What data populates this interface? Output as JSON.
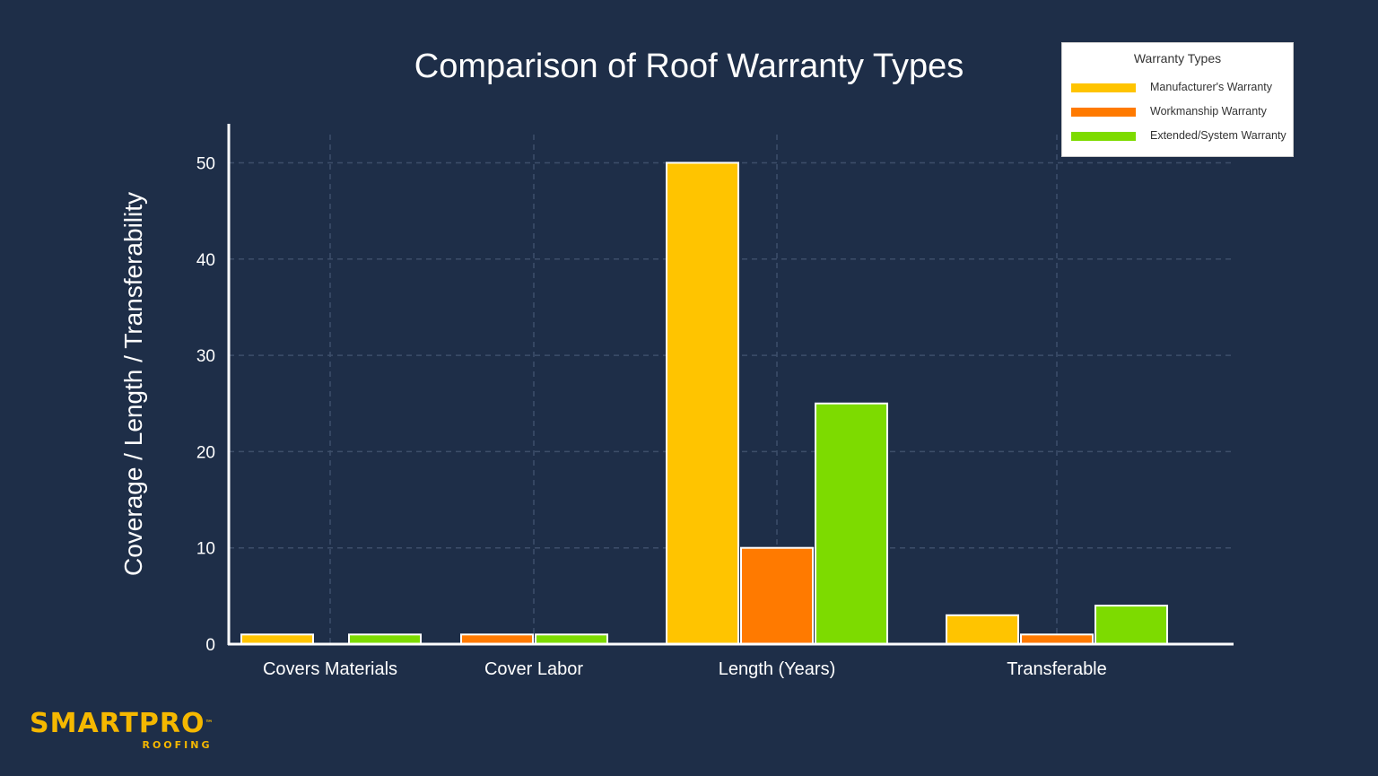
{
  "chart_data": {
    "type": "bar",
    "title": "Comparison of Roof Warranty Types",
    "ylabel": "Coverage / Length / Transferability",
    "xlabel": "",
    "ylim": [
      0,
      52
    ],
    "yticks": [
      "0",
      "10",
      "20",
      "30",
      "40",
      "50"
    ],
    "grid": true,
    "legend_position": "top-right",
    "legend_title": "Warranty Types",
    "categories": [
      "Covers Materials",
      "Cover Labor",
      "Length (Years)",
      "Transferable"
    ],
    "series": [
      {
        "name": "Manufacturer's Warranty",
        "color": "#ffc400",
        "values": [
          1,
          0,
          50,
          3
        ]
      },
      {
        "name": "Workmanship Warranty",
        "color": "#ff7a00",
        "values": [
          0,
          1,
          10,
          1
        ]
      },
      {
        "name": "Extended/System Warranty",
        "color": "#7ddb00",
        "values": [
          1,
          1,
          25,
          4
        ]
      }
    ]
  },
  "brand": {
    "name": "SMARTPRO",
    "trademark": "™",
    "tagline": "ROOFING",
    "color": "#f5b800"
  }
}
